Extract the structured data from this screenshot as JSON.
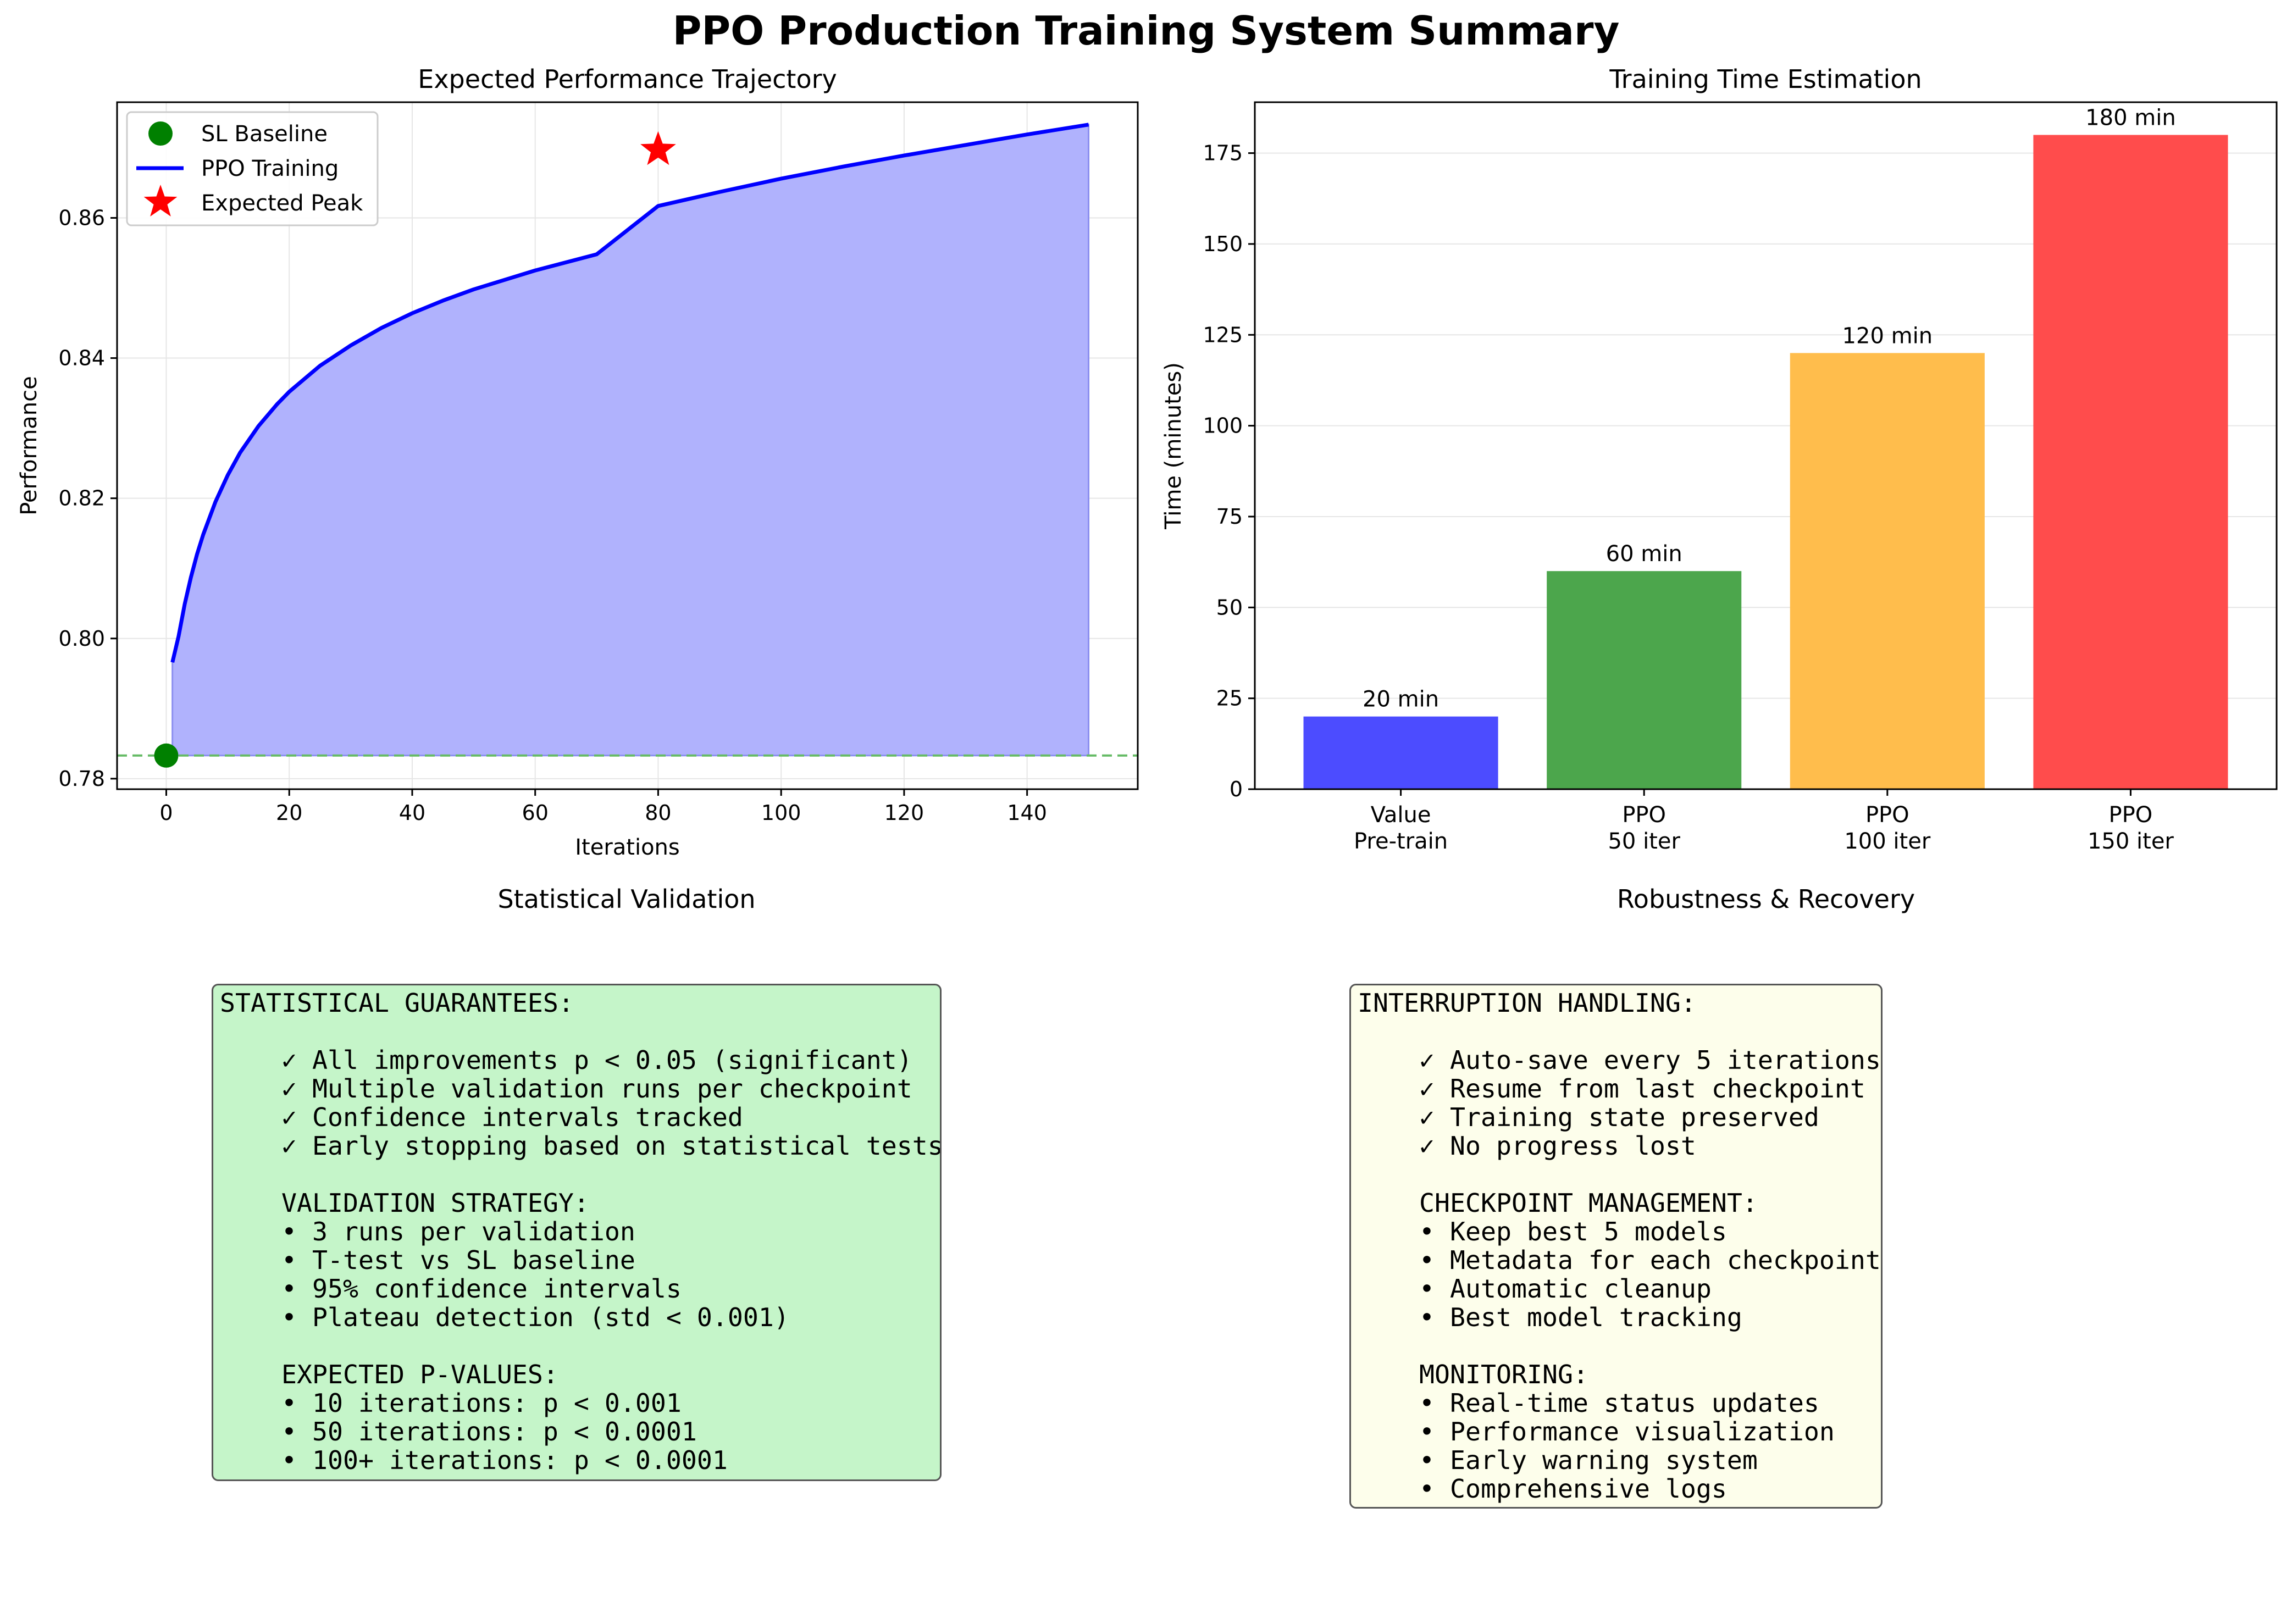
{
  "suptitle": "PPO Production Training System Summary",
  "chart_data": [
    {
      "type": "line",
      "title": "Expected Performance Trajectory",
      "xlabel": "Iterations",
      "ylabel": "Performance",
      "xlim": [
        -8,
        158
      ],
      "ylim": [
        0.7785,
        0.8765
      ],
      "xticks": [
        0,
        20,
        40,
        60,
        80,
        100,
        120,
        140
      ],
      "yticks": [
        0.78,
        0.8,
        0.82,
        0.84,
        0.86
      ],
      "ytick_labels": [
        "0.78",
        "0.80",
        "0.82",
        "0.84",
        "0.86"
      ],
      "grid": true,
      "legend_position": "upper-left",
      "baseline": {
        "name": "SL Baseline",
        "x": 0,
        "y": 0.7833,
        "color": "#008000",
        "line_style": "dashed",
        "line_color": "#66bb66"
      },
      "series": [
        {
          "name": "PPO Training",
          "color": "#0000ff",
          "fill_color": "#b0b2fd",
          "fill_to": 0.7833,
          "x": [
            1,
            2,
            3,
            4,
            5,
            6,
            8,
            10,
            12,
            15,
            18,
            20,
            25,
            30,
            35,
            40,
            45,
            50,
            60,
            70,
            80,
            90,
            100,
            110,
            120,
            130,
            140,
            150
          ],
          "y": [
            0.7966,
            0.8003,
            0.8049,
            0.8087,
            0.812,
            0.8148,
            0.8195,
            0.8233,
            0.8265,
            0.8303,
            0.8334,
            0.8352,
            0.8389,
            0.8418,
            0.8443,
            0.8464,
            0.8482,
            0.8498,
            0.8525,
            0.8548,
            0.8617,
            0.8637,
            0.8656,
            0.8673,
            0.8689,
            0.8704,
            0.8719,
            0.8733
          ]
        }
      ],
      "markers": [
        {
          "name": "Expected Peak",
          "x": 80,
          "y": 0.8697,
          "shape": "star",
          "color": "#ff0000"
        }
      ],
      "legend": [
        "SL Baseline",
        "PPO Training",
        "Expected Peak"
      ]
    },
    {
      "type": "bar",
      "title": "Training Time Estimation",
      "ylabel": "Time (minutes)",
      "categories": [
        [
          "Value",
          "Pre-train"
        ],
        [
          "PPO",
          "50 iter"
        ],
        [
          "PPO",
          "100 iter"
        ],
        [
          "PPO",
          "150 iter"
        ]
      ],
      "values": [
        20,
        60,
        120,
        180
      ],
      "data_labels": [
        "20 min",
        "60 min",
        "120 min",
        "180 min"
      ],
      "colors": [
        "#4c4cff",
        "#4ca64c",
        "#ffbd4c",
        "#ff4c4c"
      ],
      "ylim": [
        0,
        189
      ],
      "yticks": [
        0,
        25,
        50,
        75,
        100,
        125,
        150,
        175
      ],
      "grid": true
    }
  ],
  "panels": {
    "statistical": {
      "title": "Statistical Validation",
      "lines": [
        "STATISTICAL GUARANTEES:",
        "",
        "    ✓ All improvements p < 0.05 (significant)",
        "    ✓ Multiple validation runs per checkpoint",
        "    ✓ Confidence intervals tracked",
        "    ✓ Early stopping based on statistical tests",
        "",
        "    VALIDATION STRATEGY:",
        "    • 3 runs per validation",
        "    • T-test vs SL baseline",
        "    • 95% confidence intervals",
        "    • Plateau detection (std < 0.001)",
        "",
        "    EXPECTED P-VALUES:",
        "    • 10 iterations: p < 0.001",
        "    • 50 iterations: p < 0.0001",
        "    • 100+ iterations: p < 0.0001"
      ]
    },
    "robustness": {
      "title": "Robustness & Recovery",
      "lines": [
        "INTERRUPTION HANDLING:",
        "",
        "    ✓ Auto-save every 5 iterations",
        "    ✓ Resume from last checkpoint",
        "    ✓ Training state preserved",
        "    ✓ No progress lost",
        "",
        "    CHECKPOINT MANAGEMENT:",
        "    • Keep best 5 models",
        "    • Metadata for each checkpoint",
        "    • Automatic cleanup",
        "    • Best model tracking",
        "",
        "    MONITORING:",
        "    • Real-time status updates",
        "    • Performance visualization",
        "    • Early warning system",
        "    • Comprehensive logs"
      ]
    }
  }
}
